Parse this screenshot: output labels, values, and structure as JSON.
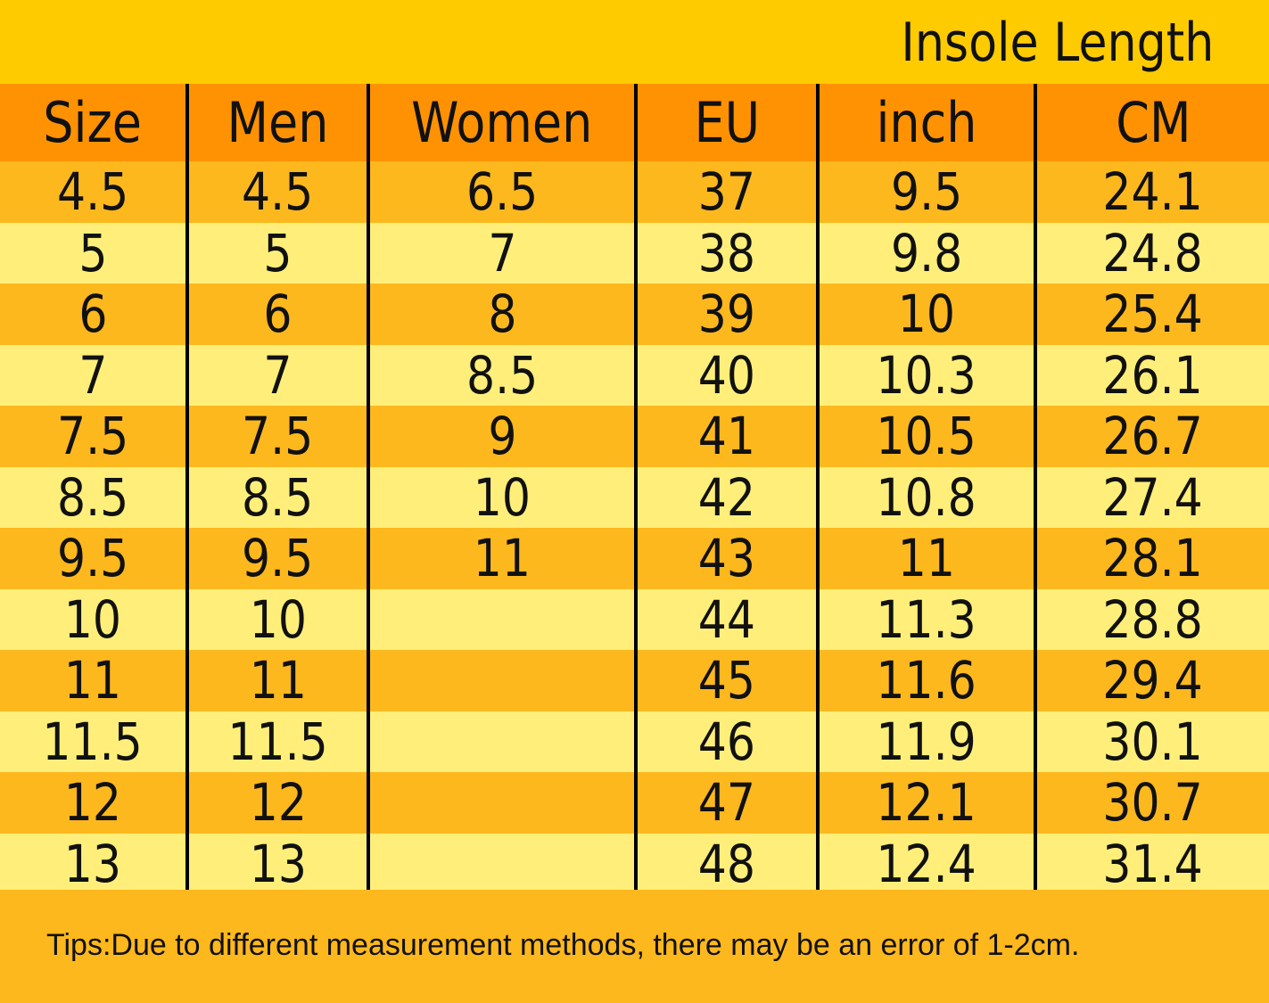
{
  "title": "Insole Length",
  "colors": {
    "title_bar": "#FECB00",
    "header_row": "#FF9203",
    "row_dark": "#FDB81E",
    "row_light": "#FFEF7A",
    "grid_line": "#000000",
    "text": "#111111"
  },
  "table": {
    "headers": [
      "Size",
      "Men",
      "Women",
      "EU",
      "inch",
      "CM"
    ],
    "rows": [
      [
        "4.5",
        "4.5",
        "6.5",
        "37",
        "9.5",
        "24.1"
      ],
      [
        "5",
        "5",
        "7",
        "38",
        "9.8",
        "24.8"
      ],
      [
        "6",
        "6",
        "8",
        "39",
        "10",
        "25.4"
      ],
      [
        "7",
        "7",
        "8.5",
        "40",
        "10.3",
        "26.1"
      ],
      [
        "7.5",
        "7.5",
        "9",
        "41",
        "10.5",
        "26.7"
      ],
      [
        "8.5",
        "8.5",
        "10",
        "42",
        "10.8",
        "27.4"
      ],
      [
        "9.5",
        "9.5",
        "11",
        "43",
        "11",
        "28.1"
      ],
      [
        "10",
        "10",
        "",
        "44",
        "11.3",
        "28.8"
      ],
      [
        "11",
        "11",
        "",
        "45",
        "11.6",
        "29.4"
      ],
      [
        "11.5",
        "11.5",
        "",
        "46",
        "11.9",
        "30.1"
      ],
      [
        "12",
        "12",
        "",
        "47",
        "12.1",
        "30.7"
      ],
      [
        "13",
        "13",
        "",
        "48",
        "12.4",
        "31.4"
      ]
    ]
  },
  "tips": "Tips:Due to different measurement methods, there may be an error of 1-2cm."
}
